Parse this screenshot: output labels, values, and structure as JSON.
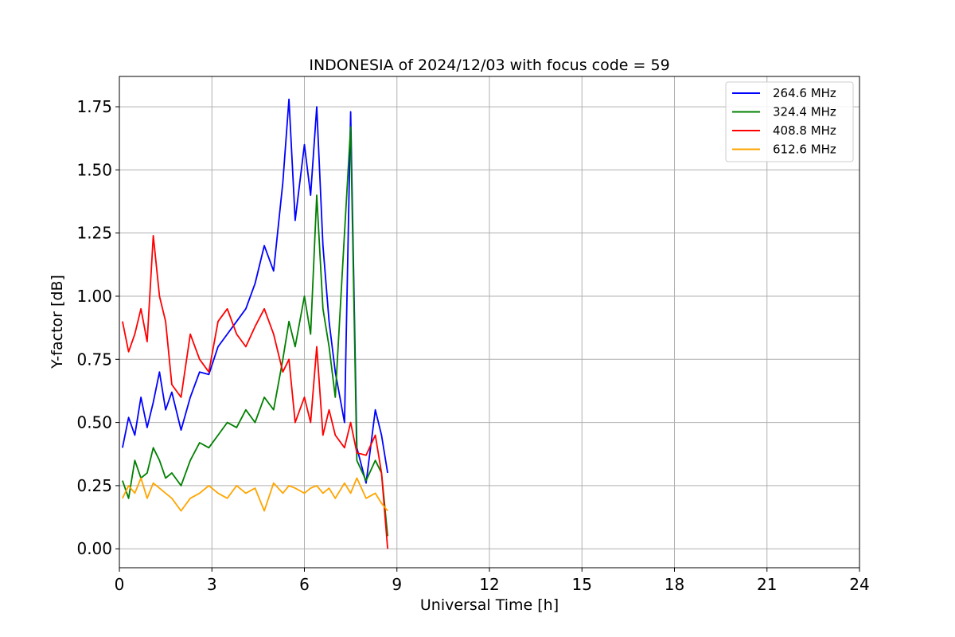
{
  "chart_data": {
    "type": "line",
    "title": "INDONESIA of 2024/12/03 with focus code = 59",
    "xlabel": "Universal Time [h]",
    "ylabel": "Y-factor [dB]",
    "xlim": [
      0,
      24
    ],
    "ylim": [
      -0.075,
      1.87
    ],
    "xticks": [
      0,
      3,
      6,
      9,
      12,
      15,
      18,
      21,
      24
    ],
    "xtick_labels": [
      "0",
      "3",
      "6",
      "9",
      "12",
      "15",
      "18",
      "21",
      "24"
    ],
    "yticks": [
      0,
      0.25,
      0.5,
      0.75,
      1.0,
      1.25,
      1.5,
      1.75
    ],
    "ytick_labels": [
      "0.00",
      "0.25",
      "0.50",
      "0.75",
      "1.00",
      "1.25",
      "1.50",
      "1.75"
    ],
    "grid": true,
    "legend_position": "top-right",
    "series": [
      {
        "name": "264.6 MHz",
        "color": "#0000ff",
        "points": [
          [
            0.1,
            0.4
          ],
          [
            0.3,
            0.52
          ],
          [
            0.5,
            0.45
          ],
          [
            0.7,
            0.6
          ],
          [
            0.9,
            0.48
          ],
          [
            1.1,
            0.58
          ],
          [
            1.3,
            0.7
          ],
          [
            1.5,
            0.55
          ],
          [
            1.7,
            0.62
          ],
          [
            2.0,
            0.47
          ],
          [
            2.3,
            0.6
          ],
          [
            2.6,
            0.7
          ],
          [
            2.9,
            0.69
          ],
          [
            3.2,
            0.8
          ],
          [
            3.5,
            0.85
          ],
          [
            3.8,
            0.9
          ],
          [
            4.1,
            0.95
          ],
          [
            4.4,
            1.05
          ],
          [
            4.7,
            1.2
          ],
          [
            5.0,
            1.1
          ],
          [
            5.3,
            1.45
          ],
          [
            5.5,
            1.78
          ],
          [
            5.7,
            1.3
          ],
          [
            6.0,
            1.6
          ],
          [
            6.2,
            1.4
          ],
          [
            6.4,
            1.75
          ],
          [
            6.6,
            1.2
          ],
          [
            6.8,
            0.9
          ],
          [
            7.0,
            0.7
          ],
          [
            7.3,
            0.5
          ],
          [
            7.5,
            1.73
          ],
          [
            7.7,
            0.4
          ],
          [
            8.0,
            0.26
          ],
          [
            8.3,
            0.55
          ],
          [
            8.5,
            0.45
          ],
          [
            8.7,
            0.3
          ]
        ]
      },
      {
        "name": "324.4 MHz",
        "color": "#008000",
        "points": [
          [
            0.1,
            0.27
          ],
          [
            0.3,
            0.2
          ],
          [
            0.5,
            0.35
          ],
          [
            0.7,
            0.28
          ],
          [
            0.9,
            0.3
          ],
          [
            1.1,
            0.4
          ],
          [
            1.3,
            0.35
          ],
          [
            1.5,
            0.28
          ],
          [
            1.7,
            0.3
          ],
          [
            2.0,
            0.25
          ],
          [
            2.3,
            0.35
          ],
          [
            2.6,
            0.42
          ],
          [
            2.9,
            0.4
          ],
          [
            3.2,
            0.45
          ],
          [
            3.5,
            0.5
          ],
          [
            3.8,
            0.48
          ],
          [
            4.1,
            0.55
          ],
          [
            4.4,
            0.5
          ],
          [
            4.7,
            0.6
          ],
          [
            5.0,
            0.55
          ],
          [
            5.3,
            0.75
          ],
          [
            5.5,
            0.9
          ],
          [
            5.7,
            0.8
          ],
          [
            6.0,
            1.0
          ],
          [
            6.2,
            0.85
          ],
          [
            6.4,
            1.4
          ],
          [
            6.6,
            0.95
          ],
          [
            6.8,
            0.8
          ],
          [
            7.0,
            0.6
          ],
          [
            7.3,
            1.25
          ],
          [
            7.5,
            1.67
          ],
          [
            7.7,
            0.35
          ],
          [
            8.0,
            0.27
          ],
          [
            8.3,
            0.35
          ],
          [
            8.5,
            0.3
          ],
          [
            8.7,
            0.05
          ]
        ]
      },
      {
        "name": "408.8 MHz",
        "color": "#ff0000",
        "points": [
          [
            0.1,
            0.9
          ],
          [
            0.3,
            0.78
          ],
          [
            0.5,
            0.85
          ],
          [
            0.7,
            0.95
          ],
          [
            0.9,
            0.82
          ],
          [
            1.1,
            1.24
          ],
          [
            1.3,
            1.0
          ],
          [
            1.5,
            0.9
          ],
          [
            1.7,
            0.65
          ],
          [
            2.0,
            0.6
          ],
          [
            2.3,
            0.85
          ],
          [
            2.6,
            0.75
          ],
          [
            2.9,
            0.7
          ],
          [
            3.2,
            0.9
          ],
          [
            3.5,
            0.95
          ],
          [
            3.8,
            0.85
          ],
          [
            4.1,
            0.8
          ],
          [
            4.4,
            0.88
          ],
          [
            4.7,
            0.95
          ],
          [
            5.0,
            0.85
          ],
          [
            5.3,
            0.7
          ],
          [
            5.5,
            0.75
          ],
          [
            5.7,
            0.5
          ],
          [
            6.0,
            0.6
          ],
          [
            6.2,
            0.5
          ],
          [
            6.4,
            0.8
          ],
          [
            6.6,
            0.45
          ],
          [
            6.8,
            0.55
          ],
          [
            7.0,
            0.45
          ],
          [
            7.3,
            0.4
          ],
          [
            7.5,
            0.5
          ],
          [
            7.7,
            0.38
          ],
          [
            8.0,
            0.37
          ],
          [
            8.3,
            0.45
          ],
          [
            8.5,
            0.3
          ],
          [
            8.7,
            0.0
          ]
        ]
      },
      {
        "name": "612.6 MHz",
        "color": "#ffa500",
        "points": [
          [
            0.1,
            0.2
          ],
          [
            0.3,
            0.25
          ],
          [
            0.5,
            0.22
          ],
          [
            0.7,
            0.28
          ],
          [
            0.9,
            0.2
          ],
          [
            1.1,
            0.26
          ],
          [
            1.3,
            0.24
          ],
          [
            1.5,
            0.22
          ],
          [
            1.7,
            0.2
          ],
          [
            2.0,
            0.15
          ],
          [
            2.3,
            0.2
          ],
          [
            2.6,
            0.22
          ],
          [
            2.9,
            0.25
          ],
          [
            3.2,
            0.22
          ],
          [
            3.5,
            0.2
          ],
          [
            3.8,
            0.25
          ],
          [
            4.1,
            0.22
          ],
          [
            4.4,
            0.24
          ],
          [
            4.7,
            0.15
          ],
          [
            5.0,
            0.26
          ],
          [
            5.3,
            0.22
          ],
          [
            5.5,
            0.25
          ],
          [
            5.7,
            0.24
          ],
          [
            6.0,
            0.22
          ],
          [
            6.2,
            0.24
          ],
          [
            6.4,
            0.25
          ],
          [
            6.6,
            0.22
          ],
          [
            6.8,
            0.24
          ],
          [
            7.0,
            0.2
          ],
          [
            7.3,
            0.26
          ],
          [
            7.5,
            0.22
          ],
          [
            7.7,
            0.28
          ],
          [
            8.0,
            0.2
          ],
          [
            8.3,
            0.22
          ],
          [
            8.5,
            0.18
          ],
          [
            8.7,
            0.15
          ]
        ]
      }
    ]
  }
}
